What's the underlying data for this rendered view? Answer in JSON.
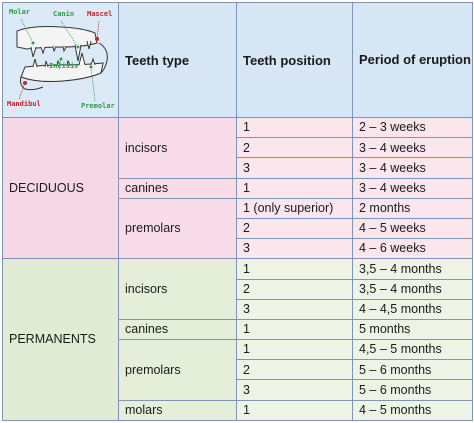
{
  "header": {
    "teeth_type": "Teeth type",
    "teeth_position": "Teeth position",
    "period_of_eruption": "Period of eruption"
  },
  "diagram": {
    "labels": {
      "molar": "Molar",
      "canin": "Canin",
      "mascel": "Mascel",
      "incisiv": "Incisiv",
      "mandibul": "Mandibul",
      "premolar": "Premolar"
    }
  },
  "groups": {
    "deciduous": "DECIDUOUS",
    "permanents": "PERMANENTS"
  },
  "deciduous": {
    "incisors": {
      "type": "incisors",
      "rows": [
        {
          "position": "1",
          "period": "2 – 3 weeks"
        },
        {
          "position": "2",
          "period": "3 – 4 weeks"
        },
        {
          "position": "3",
          "period": "3 – 4 weeks"
        }
      ]
    },
    "canines": {
      "type": "canines",
      "rows": [
        {
          "position": "1",
          "period": "3 – 4 weeks"
        }
      ]
    },
    "premolars": {
      "type": "premolars",
      "rows": [
        {
          "position": "1 (only superior)",
          "period": "2 months"
        },
        {
          "position": "2",
          "period": "4 – 5 weeks"
        },
        {
          "position": "3",
          "period": "4 – 6 weeks"
        }
      ]
    }
  },
  "permanents": {
    "incisors": {
      "type": "incisors",
      "rows": [
        {
          "position": "1",
          "period": "3,5 – 4 months"
        },
        {
          "position": "2",
          "period": "3,5 – 4 months"
        },
        {
          "position": "3",
          "period": "4 – 4,5 months"
        }
      ]
    },
    "canines": {
      "type": "canines",
      "rows": [
        {
          "position": "1",
          "period": "5 months"
        }
      ]
    },
    "premolars": {
      "type": "premolars",
      "rows": [
        {
          "position": "1",
          "period": "4,5 – 5 months"
        },
        {
          "position": "2",
          "period": "5 – 6 months"
        },
        {
          "position": "3",
          "period": "5 – 6 months"
        }
      ]
    },
    "molars": {
      "type": "molars",
      "rows": [
        {
          "position": "1",
          "period": "4 – 5 months"
        }
      ]
    }
  },
  "colors": {
    "header_bg": "#d7e6f4",
    "deciduous_bg": "#fbe6ee",
    "permanents_bg": "#edf4e6",
    "border": "#7f95b8",
    "label_green": "#2e9a4a",
    "label_red": "#c1272d"
  }
}
